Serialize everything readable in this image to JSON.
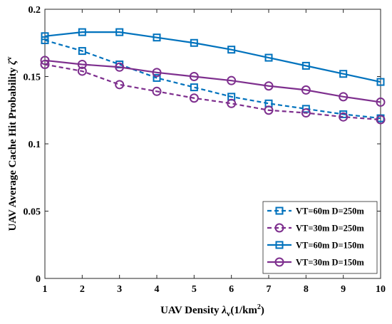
{
  "chart_data": {
    "type": "line",
    "title": "",
    "xlabel": "UAV Density λv(1/km²)",
    "ylabel": "UAV Average Cache Hit Probability ζv",
    "xlim": [
      1,
      10
    ],
    "ylim": [
      0,
      0.2
    ],
    "x": [
      1,
      2,
      3,
      4,
      5,
      6,
      7,
      8,
      9,
      10
    ],
    "x_ticks": [
      "1",
      "2",
      "3",
      "4",
      "5",
      "6",
      "7",
      "8",
      "9",
      "10"
    ],
    "y_ticks": [
      "0",
      "0.05",
      "0.1",
      "0.15",
      "0.2"
    ],
    "y_tick_values": [
      0,
      0.05,
      0.1,
      0.15,
      0.2
    ],
    "grid": false,
    "legend_placement": "bottom-right",
    "series": [
      {
        "name": "VT=60m D=250m",
        "color": "#0072BD",
        "line_style": "dashed",
        "marker": "square",
        "values": [
          0.177,
          0.169,
          0.159,
          0.149,
          0.142,
          0.135,
          0.13,
          0.126,
          0.122,
          0.119
        ]
      },
      {
        "name": "VT=30m D=250m",
        "color": "#7E2F8E",
        "line_style": "dashed",
        "marker": "circle",
        "values": [
          0.159,
          0.154,
          0.144,
          0.139,
          0.134,
          0.13,
          0.125,
          0.123,
          0.12,
          0.118
        ]
      },
      {
        "name": "VT=60m D=150m",
        "color": "#0072BD",
        "line_style": "solid",
        "marker": "square",
        "values": [
          0.18,
          0.183,
          0.183,
          0.179,
          0.175,
          0.17,
          0.164,
          0.158,
          0.152,
          0.146
        ]
      },
      {
        "name": "VT=30m D=150m",
        "color": "#7E2F8E",
        "line_style": "solid",
        "marker": "circle",
        "values": [
          0.162,
          0.159,
          0.157,
          0.153,
          0.15,
          0.147,
          0.143,
          0.14,
          0.135,
          0.131
        ]
      }
    ]
  }
}
